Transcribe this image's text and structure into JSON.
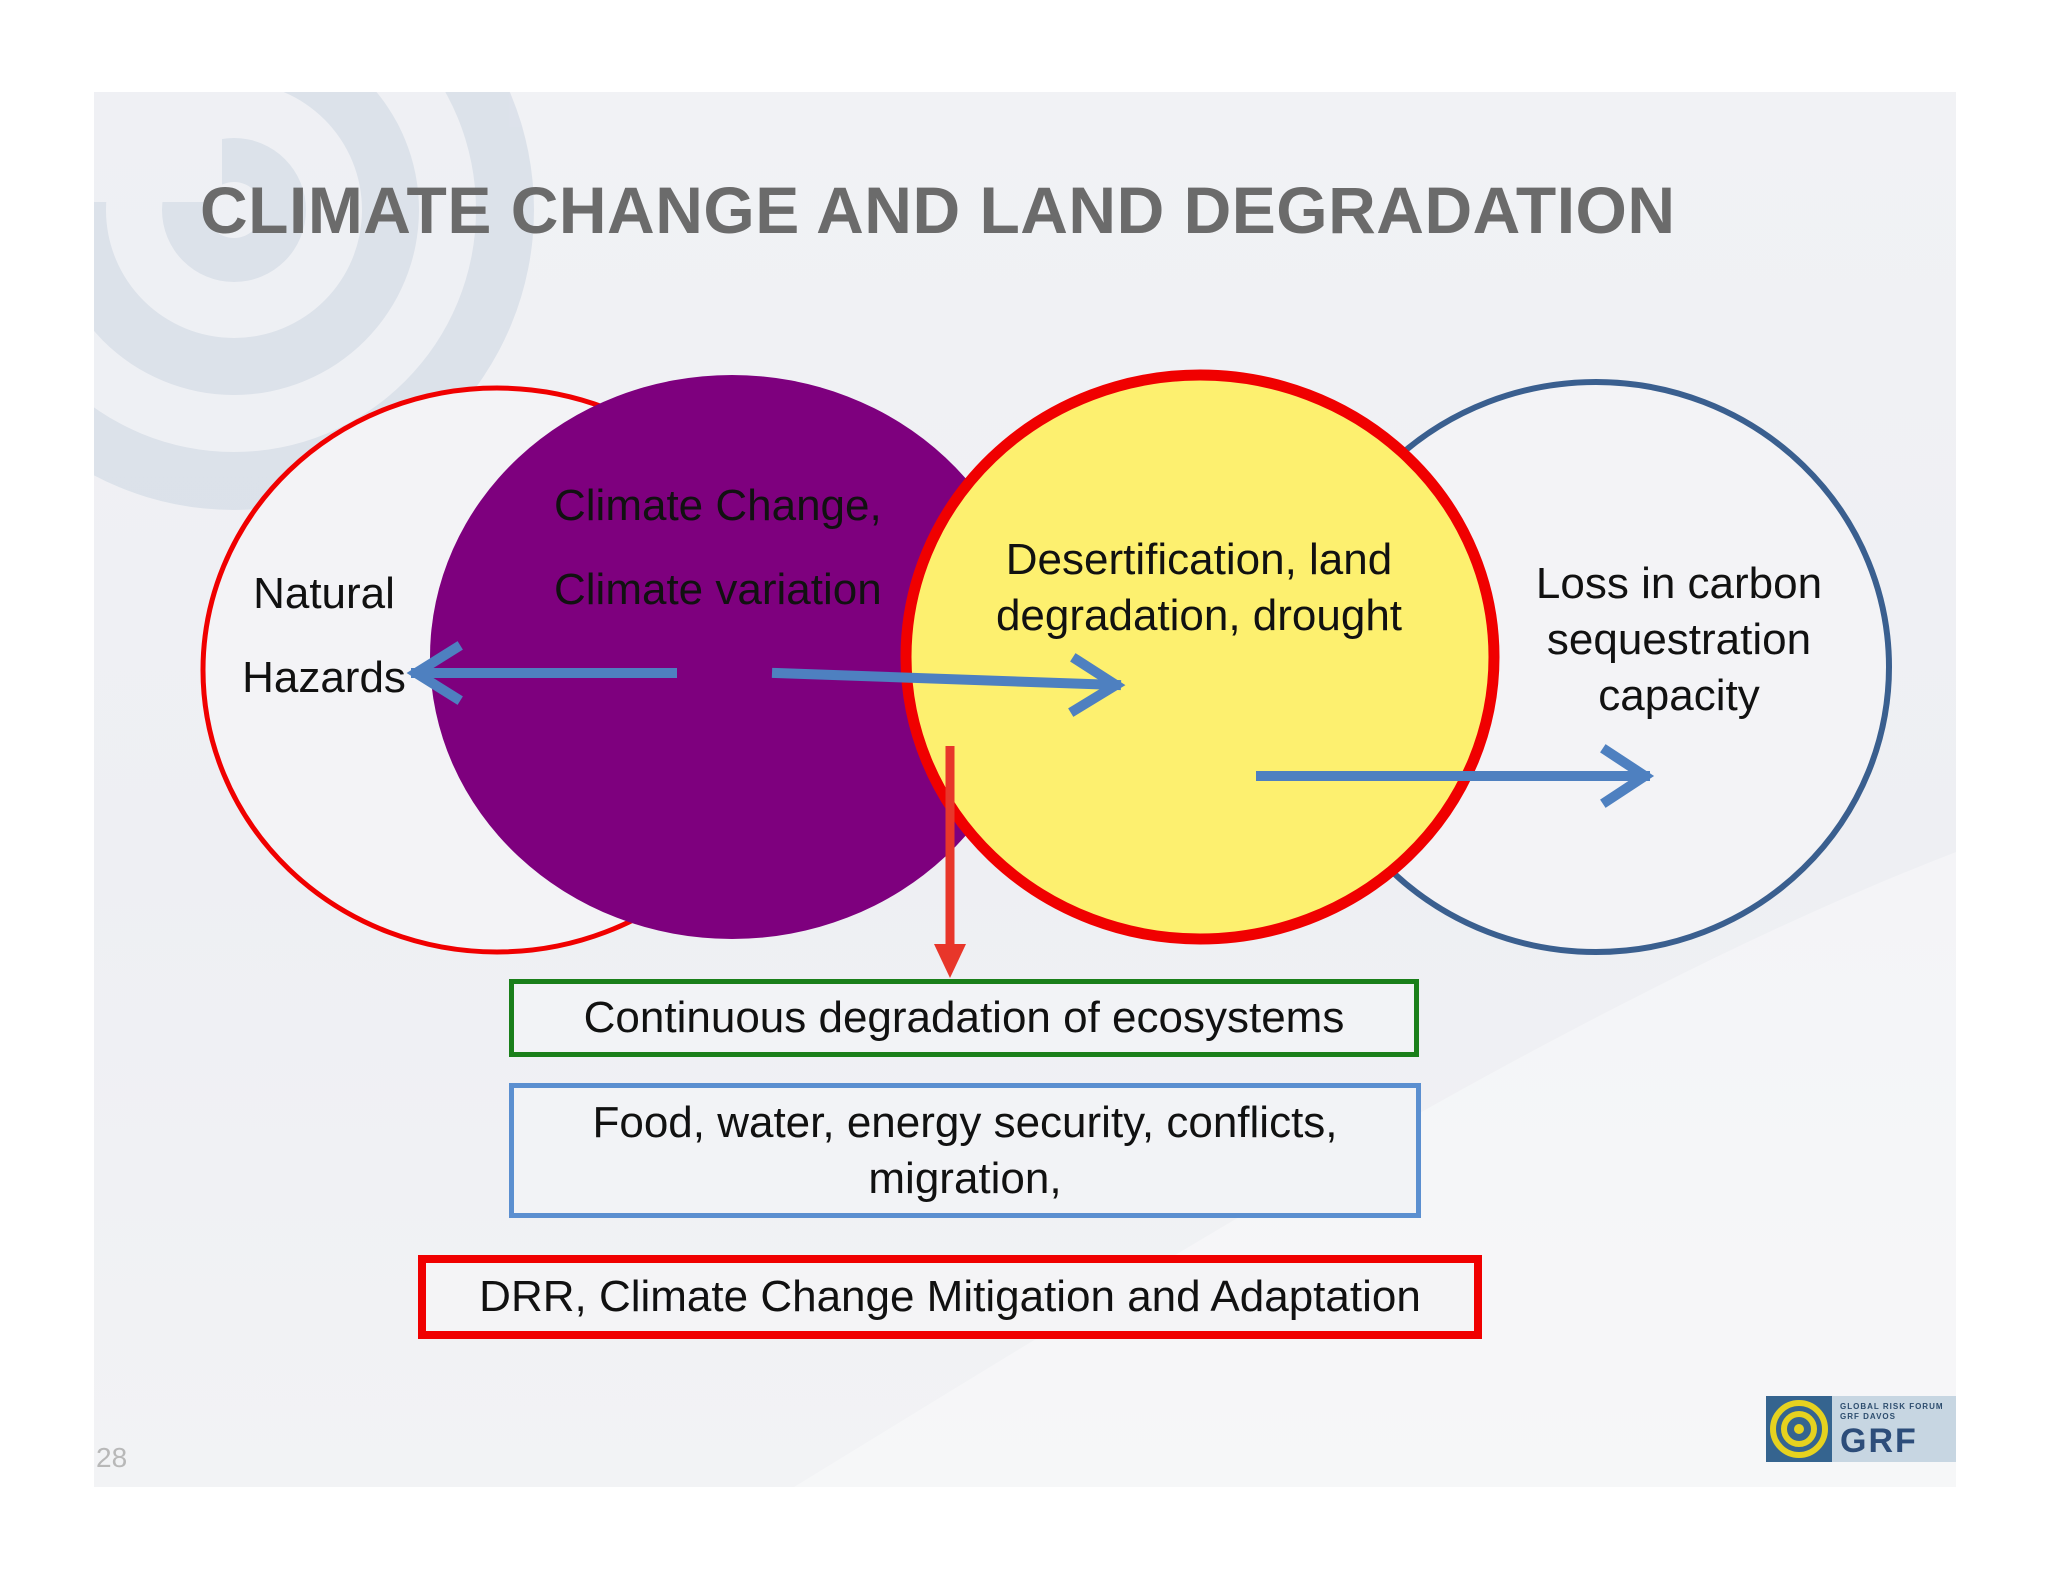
{
  "slide": {
    "title": "CLIMATE CHANGE AND LAND DEGRADATION",
    "page_number": "28"
  },
  "circles": {
    "natural_hazards": [
      "Natural",
      "Hazards"
    ],
    "climate_change": [
      "Climate Change,",
      "Climate variation"
    ],
    "desertification": [
      "Desertification, land",
      "degradation, drought"
    ],
    "carbon": [
      "Loss in carbon",
      "sequestration",
      "capacity"
    ]
  },
  "boxes": {
    "ecosystems": "Continuous degradation of ecosystems",
    "security": [
      "Food, water, energy security, conflicts,",
      "migration,"
    ],
    "drr": "DRR, Climate Change Mitigation and Adaptation"
  },
  "logo": {
    "small_line1": "GLOBAL RISK FORUM",
    "small_line2": "GRF DAVOS",
    "big": "GRF"
  },
  "colors": {
    "title_gray": "#6b6b6b",
    "purple": "#7e007e",
    "yellow": "#fdf06f",
    "red": "#f00000",
    "navy_circle": "#3a5f8f",
    "arrow_blue": "#4e80c0",
    "green_box": "#1a7f1a",
    "blue_box": "#5b8fd0"
  }
}
